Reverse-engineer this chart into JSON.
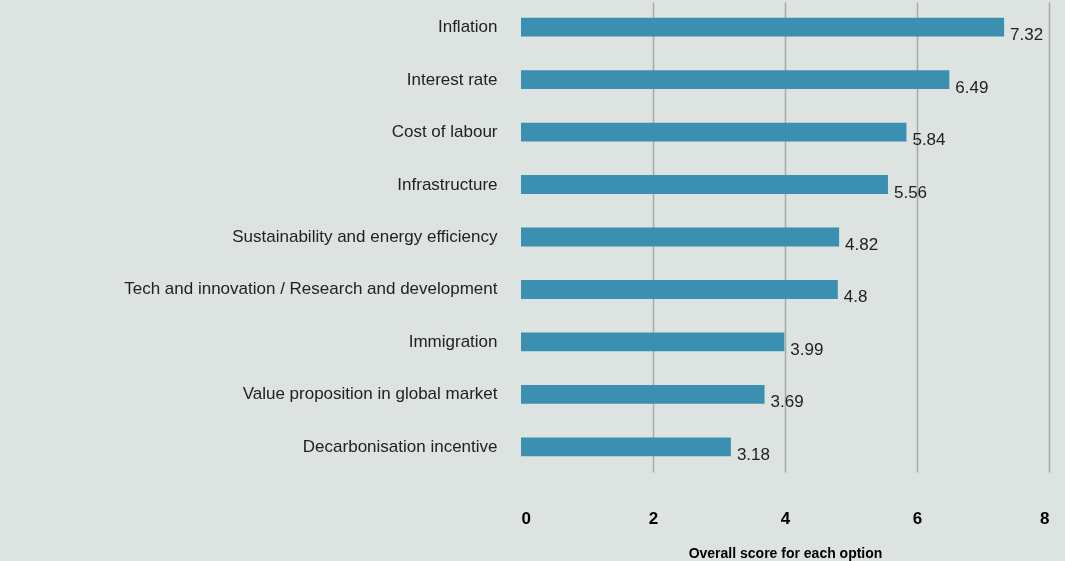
{
  "chart_data": {
    "type": "bar",
    "orientation": "horizontal",
    "xlabel": "Overall score for each option",
    "categories": [
      "Inflation",
      "Interest rate",
      "Cost of labour",
      "Infrastructure",
      "Sustainability and energy efficiency",
      "Tech and innovation / Research and development",
      "Immigration",
      "Value proposition  in global market",
      "Decarbonisation incentive"
    ],
    "values": [
      7.32,
      6.49,
      5.84,
      5.56,
      4.82,
      4.8,
      3.99,
      3.69,
      3.18
    ],
    "color": "#3b8fb0",
    "xlim": [
      0,
      8
    ],
    "xticks": [
      0,
      2,
      4,
      6,
      8
    ],
    "grid": "x",
    "data_labels": true
  }
}
